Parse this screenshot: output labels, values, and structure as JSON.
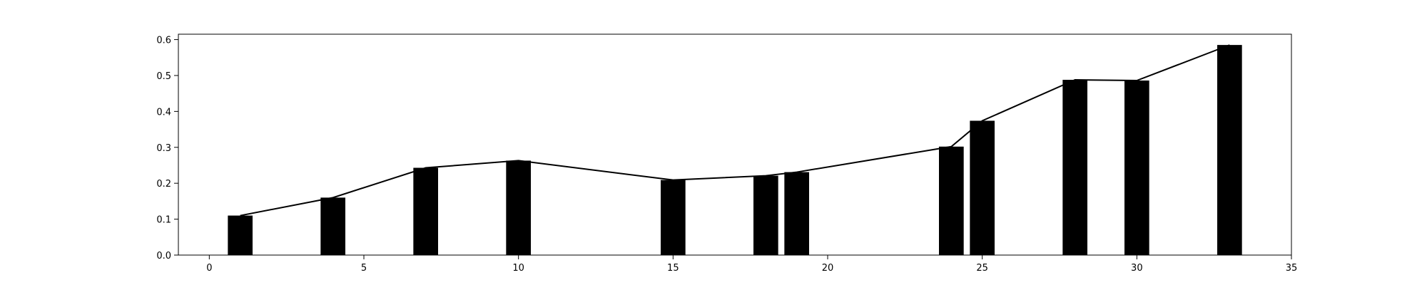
{
  "chart_data": {
    "type": "bar",
    "title": "",
    "xlabel": "",
    "ylabel": "",
    "xlim": [
      -1,
      35
    ],
    "ylim": [
      0,
      0.615
    ],
    "grid": false,
    "x_ticks": [
      0,
      5,
      10,
      15,
      20,
      25,
      30,
      35
    ],
    "y_ticks": [
      0.0,
      0.1,
      0.2,
      0.3,
      0.4,
      0.5,
      0.6
    ],
    "x_tick_labels": [
      "0",
      "5",
      "10",
      "15",
      "20",
      "25",
      "30",
      "35"
    ],
    "y_tick_labels": [
      "0.0",
      "0.1",
      "0.2",
      "0.3",
      "0.4",
      "0.5",
      "0.6"
    ],
    "bar_width": 0.8,
    "colors": {
      "bar": "#000000",
      "line": "#000000",
      "axes": "#000000",
      "background": "#ffffff"
    },
    "series": [
      {
        "kind": "bar",
        "x": [
          1,
          4,
          7,
          10,
          15,
          18,
          19,
          24,
          25,
          28,
          30,
          33
        ],
        "values": [
          0.11,
          0.16,
          0.243,
          0.263,
          0.209,
          0.221,
          0.231,
          0.302,
          0.374,
          0.488,
          0.486,
          0.585
        ]
      },
      {
        "kind": "line",
        "x": [
          1,
          4,
          7,
          10,
          15,
          18,
          19,
          24,
          25,
          28,
          30,
          33
        ],
        "values": [
          0.11,
          0.16,
          0.243,
          0.263,
          0.209,
          0.221,
          0.231,
          0.302,
          0.374,
          0.488,
          0.486,
          0.585
        ]
      }
    ]
  }
}
